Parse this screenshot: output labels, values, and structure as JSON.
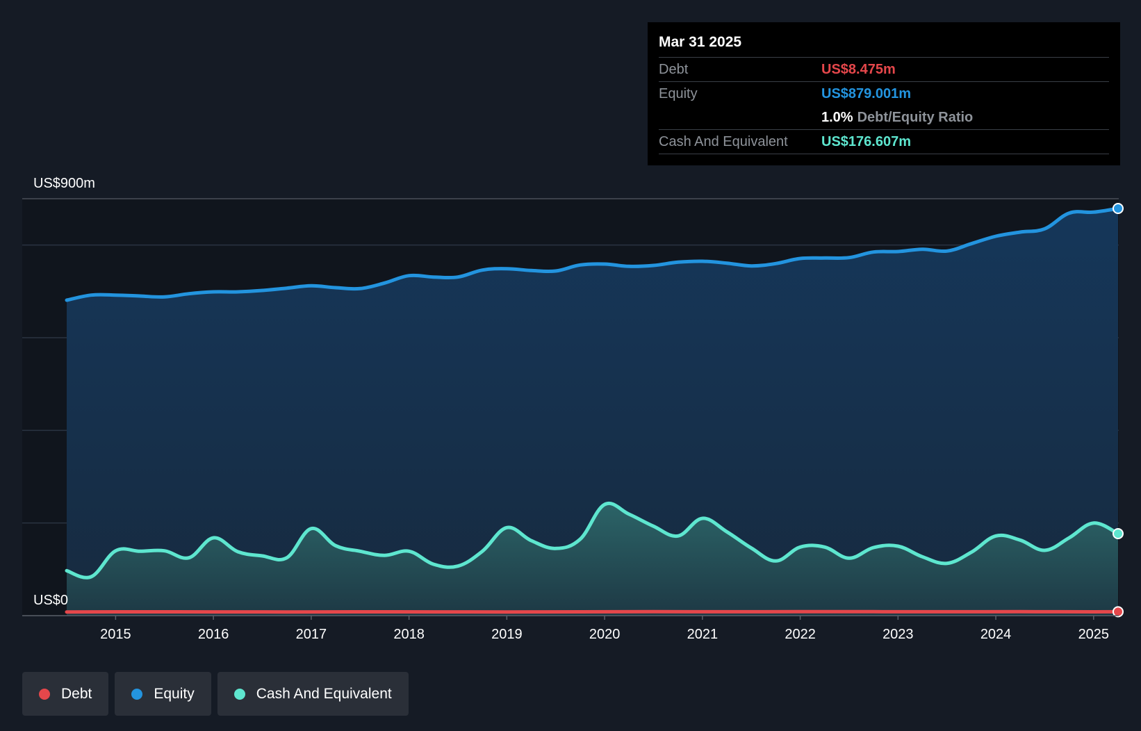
{
  "chart_data": {
    "type": "area",
    "y_top_label": "US$900m",
    "y_bottom_label": "US$0",
    "ylim": [
      0,
      900
    ],
    "xlim": [
      2014.5,
      2025.25
    ],
    "x_ticks": [
      "2015",
      "2016",
      "2017",
      "2018",
      "2019",
      "2020",
      "2021",
      "2022",
      "2023",
      "2024",
      "2025"
    ],
    "x_tick_values": [
      2015,
      2016,
      2017,
      2018,
      2019,
      2020,
      2021,
      2022,
      2023,
      2024,
      2025
    ],
    "series": [
      {
        "name": "Equity",
        "color": "#2394df",
        "x": [
          2014.5,
          2014.75,
          2015.0,
          2015.25,
          2015.5,
          2015.75,
          2016.0,
          2016.25,
          2016.5,
          2016.75,
          2017.0,
          2017.25,
          2017.5,
          2017.75,
          2018.0,
          2018.25,
          2018.5,
          2018.75,
          2019.0,
          2019.25,
          2019.5,
          2019.75,
          2020.0,
          2020.25,
          2020.5,
          2020.75,
          2021.0,
          2021.25,
          2021.5,
          2021.75,
          2022.0,
          2022.25,
          2022.5,
          2022.75,
          2023.0,
          2023.25,
          2023.5,
          2023.75,
          2024.0,
          2024.25,
          2024.5,
          2024.75,
          2025.0,
          2025.25
        ],
        "values": [
          681,
          692,
          692,
          690,
          688,
          695,
          699,
          699,
          702,
          707,
          712,
          708,
          706,
          718,
          734,
          731,
          731,
          746,
          749,
          745,
          744,
          757,
          759,
          754,
          756,
          763,
          765,
          761,
          755,
          760,
          771,
          772,
          773,
          785,
          786,
          791,
          787,
          803,
          819,
          828,
          835,
          869,
          871,
          879
        ]
      },
      {
        "name": "Cash And Equivalent",
        "color": "#5ee6cf",
        "x": [
          2014.5,
          2014.75,
          2015.0,
          2015.25,
          2015.5,
          2015.75,
          2016.0,
          2016.25,
          2016.5,
          2016.75,
          2017.0,
          2017.25,
          2017.5,
          2017.75,
          2018.0,
          2018.25,
          2018.5,
          2018.75,
          2019.0,
          2019.25,
          2019.5,
          2019.75,
          2020.0,
          2020.25,
          2020.5,
          2020.75,
          2021.0,
          2021.25,
          2021.5,
          2021.75,
          2022.0,
          2022.25,
          2022.5,
          2022.75,
          2023.0,
          2023.25,
          2023.5,
          2023.75,
          2024.0,
          2024.25,
          2024.5,
          2024.75,
          2025.0,
          2025.25
        ],
        "values": [
          97,
          84,
          140,
          139,
          140,
          125,
          168,
          138,
          129,
          125,
          188,
          151,
          139,
          130,
          139,
          111,
          107,
          139,
          190,
          162,
          145,
          165,
          240,
          219,
          193,
          172,
          210,
          181,
          146,
          118,
          148,
          148,
          124,
          147,
          150,
          127,
          113,
          137,
          172,
          163,
          141,
          168,
          200,
          177
        ]
      },
      {
        "name": "Debt",
        "color": "#e5474b",
        "x": [
          2014.5,
          2015.25,
          2016.0,
          2016.75,
          2017.5,
          2018.25,
          2019.0,
          2019.75,
          2020.5,
          2021.25,
          2022.0,
          2022.75,
          2023.5,
          2024.25,
          2025.0,
          2025.25
        ],
        "values": [
          8.0,
          8.3,
          8.1,
          8.0,
          8.2,
          8.1,
          8.0,
          8.3,
          8.5,
          8.4,
          8.6,
          8.5,
          8.4,
          8.5,
          8.3,
          8.475
        ]
      }
    ]
  },
  "tooltip": {
    "date": "Mar 31 2025",
    "debt_label": "Debt",
    "debt_value": "US$8.475m",
    "equity_label": "Equity",
    "equity_value": "US$879.001m",
    "ratio_value": "1.0%",
    "ratio_label": "Debt/Equity Ratio",
    "cash_label": "Cash And Equivalent",
    "cash_value": "US$176.607m"
  },
  "legend": {
    "debt": "Debt",
    "equity": "Equity",
    "cash": "Cash And Equivalent"
  },
  "colors": {
    "debt": "#e5474b",
    "equity": "#2394df",
    "cash": "#5ee6cf",
    "background": "#151b25"
  }
}
